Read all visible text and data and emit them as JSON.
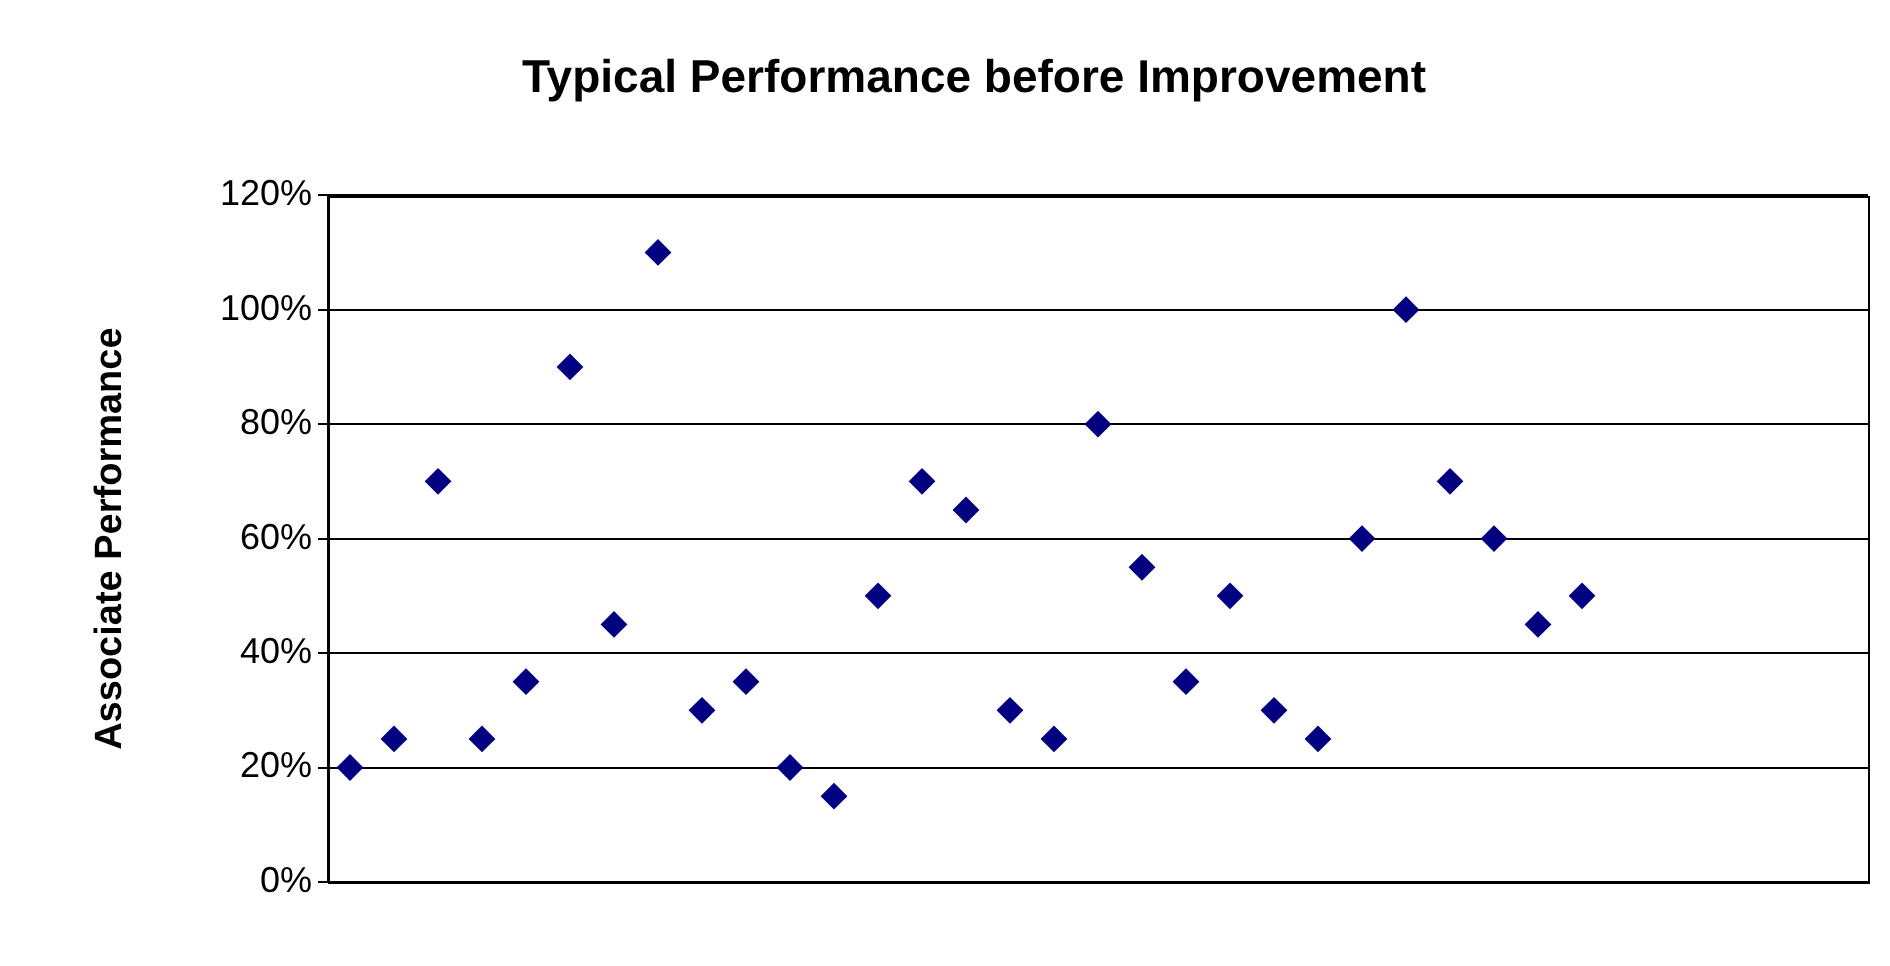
{
  "chart_data": {
    "type": "scatter",
    "title": "Typical Performance before Improvement",
    "ylabel": "Associate Performance",
    "categories": [
      null,
      null,
      null,
      null,
      null,
      null,
      null,
      null,
      null,
      null,
      null,
      null,
      null,
      null,
      null,
      null,
      null,
      null,
      null,
      null,
      null,
      null,
      null,
      null,
      null,
      null,
      null,
      null,
      null,
      null,
      null,
      null,
      null,
      null,
      null
    ],
    "values": [
      20,
      25,
      70,
      25,
      35,
      90,
      45,
      110,
      30,
      35,
      20,
      15,
      50,
      70,
      65,
      30,
      25,
      80,
      55,
      35,
      50,
      30,
      25,
      60,
      100,
      70,
      60,
      45,
      50,
      null,
      null,
      null,
      null,
      null,
      null
    ],
    "color": "#000080",
    "marker": "diamond",
    "ylim": [
      0,
      120
    ],
    "yticks": [
      {
        "value": 0,
        "label": "0%"
      },
      {
        "value": 20,
        "label": "20%"
      },
      {
        "value": 40,
        "label": "40%"
      },
      {
        "value": 60,
        "label": "60%"
      },
      {
        "value": 80,
        "label": "80%"
      },
      {
        "value": 100,
        "label": "100%"
      },
      {
        "value": 120,
        "label": "120%"
      }
    ],
    "grid": "y",
    "tick_labels": "y",
    "legend": false
  }
}
